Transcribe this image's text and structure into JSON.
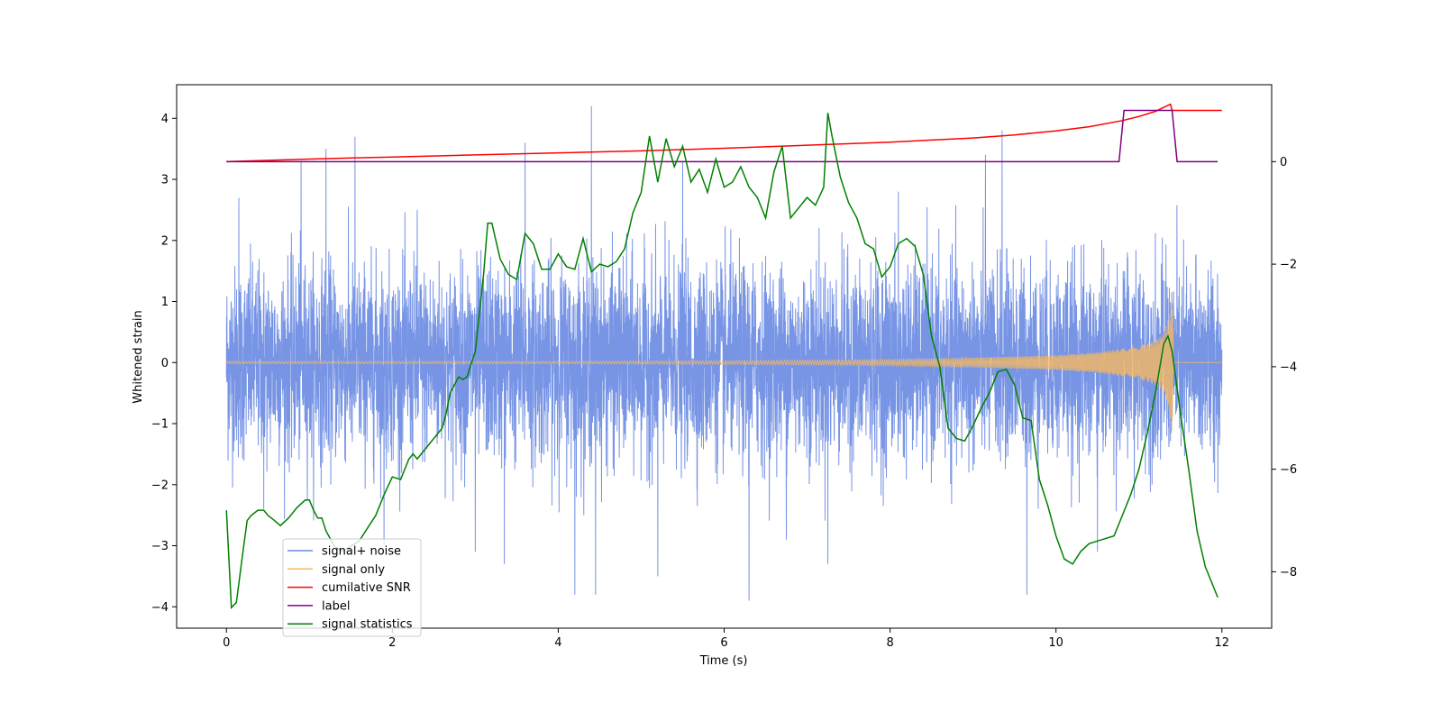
{
  "chart_data": {
    "type": "line",
    "title": "",
    "xlabel": "Time (s)",
    "ylabel": "Whitened strain",
    "y2label": "",
    "xlim": [
      -0.6,
      12.6
    ],
    "ylim": [
      -4.35,
      4.55
    ],
    "y2lim": [
      -9.1,
      1.5
    ],
    "xticks": [
      0,
      2,
      4,
      6,
      8,
      10,
      12
    ],
    "yticks": [
      -4,
      -3,
      -2,
      -1,
      0,
      1,
      2,
      3,
      4
    ],
    "y2ticks": [
      -8,
      -6,
      -4,
      -2,
      0
    ],
    "legend_position": "lower-left",
    "colors": {
      "noise": "#6b8be3",
      "signal": "#f5b860",
      "snr": "#ff0000",
      "label": "#800080",
      "stat": "#008000"
    },
    "series": [
      {
        "name": "signal+ noise",
        "axis": "left",
        "description": "dense noise band roughly between -2.5 and 2.5 with spikes up to about 4.2 and down to about -3.9",
        "spikes": [
          [
            0.15,
            2.7
          ],
          [
            0.45,
            -2.4
          ],
          [
            0.9,
            3.3
          ],
          [
            1.2,
            3.5
          ],
          [
            1.55,
            3.7
          ],
          [
            1.9,
            -3.0
          ],
          [
            2.3,
            2.5
          ],
          [
            3.0,
            -3.1
          ],
          [
            3.35,
            -3.3
          ],
          [
            3.6,
            3.6
          ],
          [
            4.4,
            4.2
          ],
          [
            4.2,
            -3.8
          ],
          [
            4.45,
            -3.8
          ],
          [
            5.2,
            -3.5
          ],
          [
            5.5,
            3.3
          ],
          [
            6.3,
            -3.9
          ],
          [
            6.75,
            -2.9
          ],
          [
            7.25,
            -3.3
          ],
          [
            8.1,
            2.8
          ],
          [
            9.15,
            3.4
          ],
          [
            9.35,
            3.8
          ],
          [
            9.65,
            -3.8
          ],
          [
            10.5,
            -3.1
          ]
        ]
      },
      {
        "name": "signal only",
        "axis": "left",
        "description": "chirp with growing amplitude",
        "envelope_x": [
          0,
          2,
          4,
          6,
          8,
          9,
          10,
          10.5,
          11,
          11.2,
          11.3,
          11.37,
          11.4,
          11.42
        ],
        "envelope_y": [
          0.02,
          0.02,
          0.02,
          0.03,
          0.05,
          0.08,
          0.12,
          0.17,
          0.27,
          0.37,
          0.48,
          0.8,
          1.3,
          0.1
        ],
        "after_merger": 0.0
      },
      {
        "name": "cumilative SNR",
        "axis": "right",
        "x": [
          0,
          1,
          2,
          3,
          4,
          5,
          6,
          7,
          8,
          9,
          9.5,
          10,
          10.4,
          10.8,
          11.0,
          11.2,
          11.3,
          11.38,
          11.4,
          12.0
        ],
        "y": [
          0.0,
          0.05,
          0.09,
          0.13,
          0.17,
          0.21,
          0.26,
          0.32,
          0.38,
          0.46,
          0.52,
          0.6,
          0.68,
          0.8,
          0.88,
          0.98,
          1.06,
          1.12,
          1.0,
          1.0
        ]
      },
      {
        "name": "label",
        "axis": "right",
        "x": [
          0,
          10.76,
          10.82,
          11.4,
          11.46,
          11.95
        ],
        "y": [
          0,
          0,
          1,
          1,
          0,
          0
        ]
      },
      {
        "name": "signal statistics",
        "axis": "right",
        "x": [
          0,
          0.06,
          0.12,
          0.2,
          0.25,
          0.3,
          0.38,
          0.45,
          0.5,
          0.58,
          0.65,
          0.75,
          0.85,
          0.95,
          1.0,
          1.05,
          1.1,
          1.15,
          1.2,
          1.3,
          1.4,
          1.5,
          1.6,
          1.7,
          1.8,
          1.9,
          2.0,
          2.1,
          2.2,
          2.25,
          2.3,
          2.4,
          2.5,
          2.6,
          2.65,
          2.7,
          2.8,
          2.85,
          2.9,
          3.0,
          3.1,
          3.15,
          3.2,
          3.3,
          3.4,
          3.5,
          3.6,
          3.7,
          3.8,
          3.9,
          4.0,
          4.1,
          4.2,
          4.3,
          4.4,
          4.5,
          4.6,
          4.7,
          4.8,
          4.9,
          5.0,
          5.1,
          5.2,
          5.3,
          5.4,
          5.5,
          5.6,
          5.7,
          5.8,
          5.9,
          6.0,
          6.1,
          6.2,
          6.3,
          6.4,
          6.5,
          6.6,
          6.7,
          6.8,
          6.9,
          7.0,
          7.1,
          7.2,
          7.25,
          7.3,
          7.4,
          7.5,
          7.6,
          7.7,
          7.8,
          7.9,
          8.0,
          8.1,
          8.2,
          8.3,
          8.4,
          8.5,
          8.6,
          8.7,
          8.8,
          8.9,
          9.0,
          9.1,
          9.2,
          9.3,
          9.4,
          9.5,
          9.6,
          9.7,
          9.8,
          9.9,
          10.0,
          10.1,
          10.2,
          10.3,
          10.4,
          10.5,
          10.6,
          10.7,
          10.8,
          10.9,
          11.0,
          11.1,
          11.2,
          11.3,
          11.35,
          11.4,
          11.5,
          11.6,
          11.7,
          11.8,
          11.9,
          11.95
        ],
        "y": [
          -6.8,
          -8.7,
          -8.6,
          -7.6,
          -7.0,
          -6.9,
          -6.8,
          -6.8,
          -6.9,
          -7.0,
          -7.1,
          -6.95,
          -6.75,
          -6.6,
          -6.6,
          -6.8,
          -6.95,
          -6.95,
          -7.2,
          -7.5,
          -7.6,
          -7.5,
          -7.4,
          -7.15,
          -6.9,
          -6.5,
          -6.15,
          -6.2,
          -5.8,
          -5.7,
          -5.8,
          -5.6,
          -5.4,
          -5.2,
          -4.9,
          -4.5,
          -4.2,
          -4.25,
          -4.2,
          -3.7,
          -2.2,
          -1.2,
          -1.2,
          -1.9,
          -2.2,
          -2.3,
          -1.4,
          -1.6,
          -2.1,
          -2.1,
          -1.8,
          -2.05,
          -2.1,
          -1.5,
          -2.15,
          -2.0,
          -2.05,
          -1.95,
          -1.7,
          -1.0,
          -0.6,
          0.5,
          -0.4,
          0.45,
          -0.1,
          0.3,
          -0.4,
          -0.15,
          -0.6,
          0.05,
          -0.5,
          -0.4,
          -0.1,
          -0.5,
          -0.7,
          -1.1,
          -0.2,
          0.3,
          -1.1,
          -0.9,
          -0.7,
          -0.85,
          -0.5,
          0.95,
          0.5,
          -0.3,
          -0.8,
          -1.1,
          -1.6,
          -1.7,
          -2.25,
          -2.05,
          -1.6,
          -1.5,
          -1.65,
          -2.2,
          -3.4,
          -4.0,
          -5.2,
          -5.4,
          -5.45,
          -5.15,
          -4.8,
          -4.5,
          -4.1,
          -4.05,
          -4.35,
          -5.0,
          -5.05,
          -6.2,
          -6.7,
          -7.3,
          -7.75,
          -7.85,
          -7.6,
          -7.45,
          -7.4,
          -7.35,
          -7.3,
          -6.9,
          -6.5,
          -6.0,
          -5.3,
          -4.5,
          -3.55,
          -3.4,
          -3.7,
          -4.9,
          -6.0,
          -7.2,
          -7.9,
          -8.3,
          -8.5
        ]
      }
    ]
  }
}
